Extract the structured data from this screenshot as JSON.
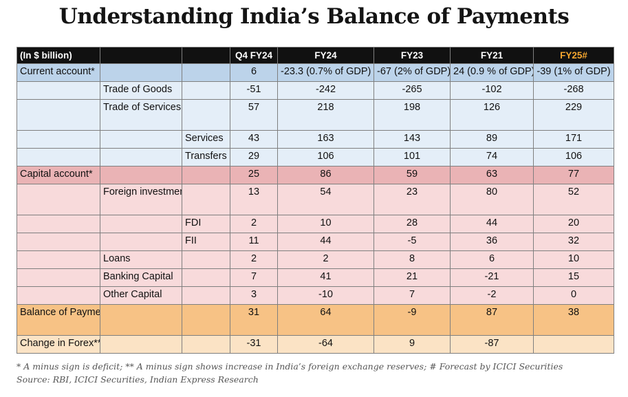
{
  "title": "Understanding India’s Balance of Payments",
  "chart_data": {
    "type": "table",
    "title": "Understanding India’s Balance of Payments",
    "unit_label": "(In $ billion)",
    "columns": [
      "Q4 FY24",
      "FY24",
      "FY23",
      "FY21",
      "FY25#"
    ],
    "highlight_column": "FY25#",
    "highlight_color": "#f3a52f",
    "rows": [
      {
        "level": 0,
        "label": "Current account*",
        "values": [
          "6",
          "-23.3 (0.7% of GDP)",
          "-67 (2% of GDP)",
          "24 (0.9 % of GDP)",
          "-39 (1% of GDP)"
        ]
      },
      {
        "level": 1,
        "label": "Trade of Goods",
        "values": [
          "-51",
          "-242",
          "-265",
          "-102",
          "-268"
        ]
      },
      {
        "level": 1,
        "label": "Trade of Services (Invisibles)",
        "values": [
          "57",
          "218",
          "198",
          "126",
          "229"
        ]
      },
      {
        "level": 2,
        "label": "Services",
        "values": [
          "43",
          "163",
          "143",
          "89",
          "171"
        ]
      },
      {
        "level": 2,
        "label": "Transfers",
        "values": [
          "29",
          "106",
          "101",
          "74",
          "106"
        ]
      },
      {
        "level": 0,
        "label": "Capital account*",
        "values": [
          "25",
          "86",
          "59",
          "63",
          "77"
        ]
      },
      {
        "level": 1,
        "label": "Foreign investment",
        "values": [
          "13",
          "54",
          "23",
          "80",
          "52"
        ]
      },
      {
        "level": 2,
        "label": "FDI",
        "values": [
          "2",
          "10",
          "28",
          "44",
          "20"
        ]
      },
      {
        "level": 2,
        "label": "FII",
        "values": [
          "11",
          "44",
          "-5",
          "36",
          "32"
        ]
      },
      {
        "level": 1,
        "label": "Loans",
        "values": [
          "2",
          "2",
          "8",
          "6",
          "10"
        ]
      },
      {
        "level": 1,
        "label": "Banking Capital",
        "values": [
          "7",
          "41",
          "21",
          "-21",
          "15"
        ]
      },
      {
        "level": 1,
        "label": "Other Capital",
        "values": [
          "3",
          "-10",
          "7",
          "-2",
          "0"
        ]
      },
      {
        "level": 0,
        "label": "Balance of Payments*",
        "values": [
          "31",
          "64",
          "-9",
          "87",
          "38"
        ]
      },
      {
        "level": 0,
        "label": "Change in Forex**",
        "values": [
          "-31",
          "-64",
          "9",
          "-87",
          ""
        ]
      }
    ],
    "row_colors": {
      "current_account": "#bcd3ea",
      "current_account_items": "#e4eef8",
      "capital_account": "#eab3b5",
      "capital_account_items": "#f8dadb",
      "balance_of_payments": "#f7c285",
      "change_in_forex": "#fbe3c5"
    }
  },
  "footnote": "* A minus sign is deficit; ** A minus sign shows increase in India’s foreign exchange reserves; # Forecast by ICICI Securities",
  "source": "Source: RBI, ICICI Securities, Indian Express Research"
}
